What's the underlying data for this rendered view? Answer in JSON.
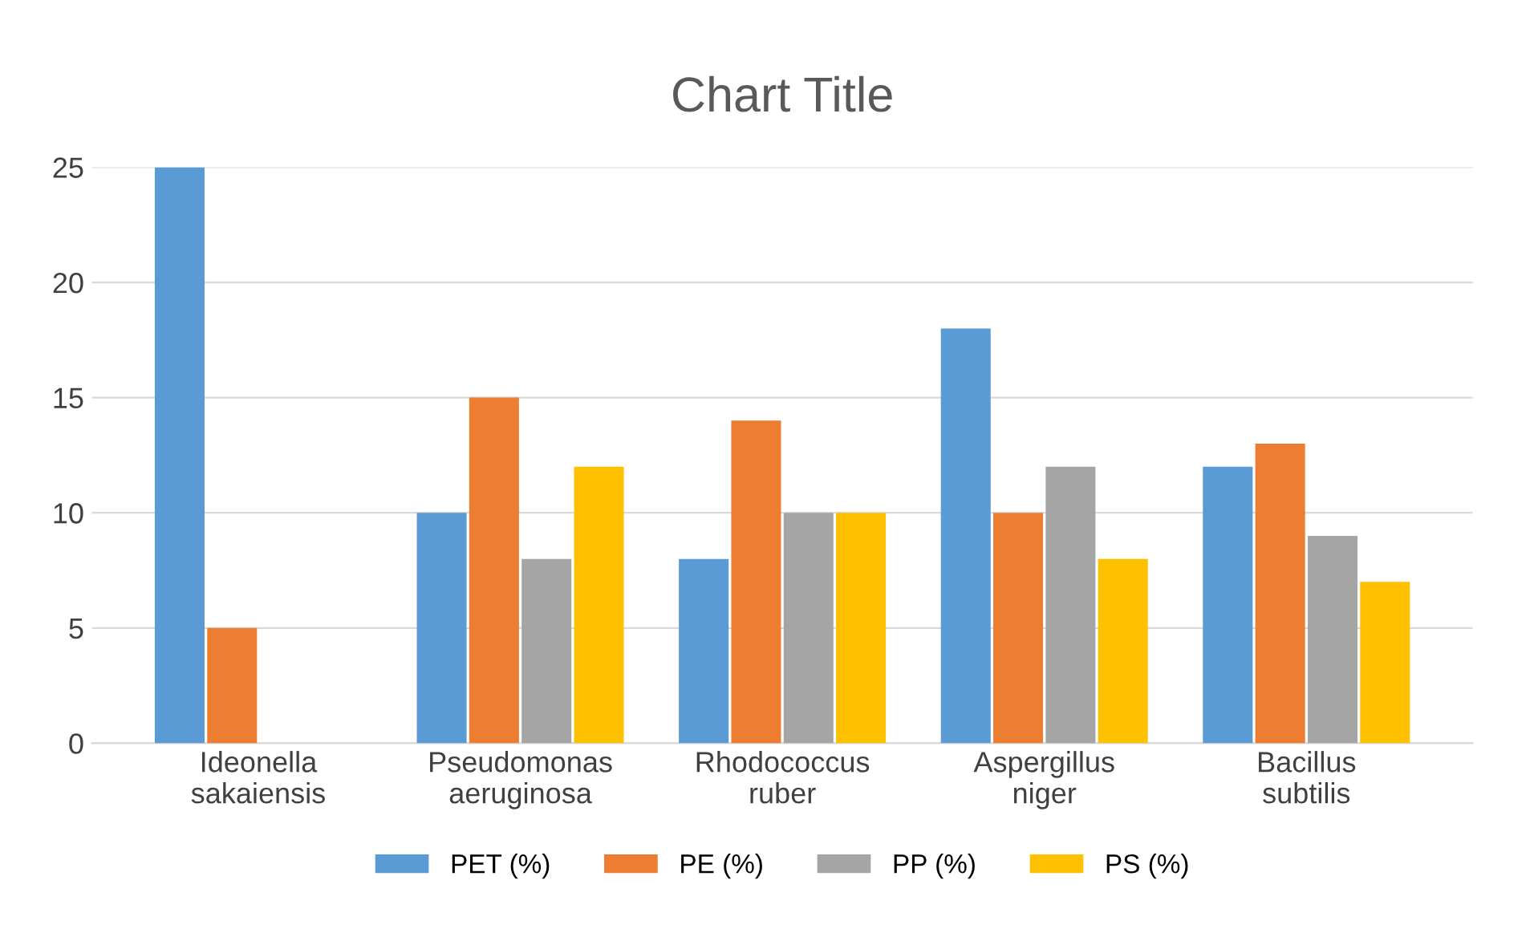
{
  "chart_data": {
    "type": "bar",
    "title": "Chart Title",
    "categories": [
      "Ideonella\nsakaiensis",
      "Pseudomonas\naeruginosa",
      "Rhodococcus\nruber",
      "Aspergillus\nniger",
      "Bacillus\nsubtilis"
    ],
    "series": [
      {
        "name": "PET (%)",
        "color": "#5b9bd5",
        "values": [
          25,
          10,
          8,
          18,
          12
        ]
      },
      {
        "name": "PE (%)",
        "color": "#ed7d31",
        "values": [
          5,
          15,
          14,
          10,
          13
        ]
      },
      {
        "name": "PP (%)",
        "color": "#a5a5a5",
        "values": [
          0,
          8,
          10,
          12,
          9
        ]
      },
      {
        "name": "PS (%)",
        "color": "#ffc000",
        "values": [
          0,
          12,
          10,
          8,
          7
        ]
      }
    ],
    "ylim": [
      0,
      25
    ],
    "yticks": [
      0,
      5,
      10,
      15,
      20,
      25
    ],
    "grid": "y",
    "legend": "bottom"
  }
}
